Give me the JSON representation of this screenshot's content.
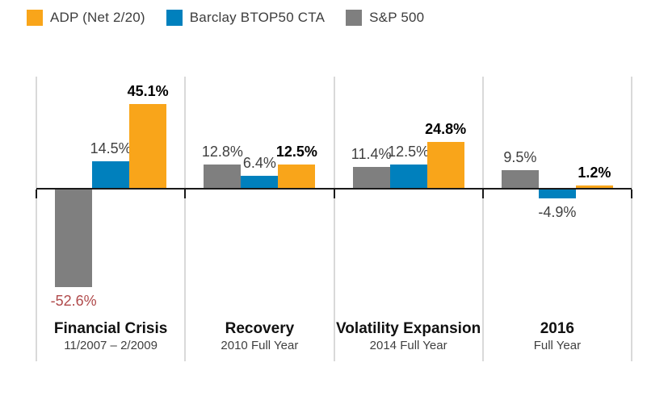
{
  "legend": {
    "items": [
      {
        "label": "ADP (Net 2/20)",
        "color": "#F9A51A"
      },
      {
        "label": "Barclay BTOP50 CTA",
        "color": "#0080BD"
      },
      {
        "label": "S&P 500",
        "color": "#7F7F7F"
      }
    ]
  },
  "chart_data": {
    "type": "bar",
    "title": "",
    "ylabel": "",
    "xlabel": "",
    "ylim": [
      -60,
      50
    ],
    "grid": "off",
    "legend_position": "top-left",
    "value_unit": "%",
    "categories": [
      "Financial Crisis",
      "Recovery",
      "Volatility Expansion",
      "2016"
    ],
    "series": [
      {
        "name": "ADP (Net 2/20)",
        "color": "#F9A51A",
        "values": [
          45.1,
          12.5,
          24.8,
          1.2
        ]
      },
      {
        "name": "Barclay BTOP50 CTA",
        "color": "#0080BD",
        "values": [
          14.5,
          6.4,
          12.5,
          -4.9
        ]
      },
      {
        "name": "S&P 500",
        "color": "#7F7F7F",
        "values": [
          -52.6,
          12.8,
          11.4,
          9.5
        ]
      }
    ],
    "bar_order_within_group": [
      "S&P 500",
      "Barclay BTOP50 CTA",
      "ADP (Net 2/20)"
    ],
    "groups": [
      {
        "title": "Financial Crisis",
        "subtitle": "11/2007 – 2/2009",
        "bars": [
          {
            "series": "S&P 500",
            "value": -52.6,
            "label": "-52.6%",
            "label_color": "#B04A4B"
          },
          {
            "series": "Barclay BTOP50 CTA",
            "value": 14.5,
            "label": "14.5%"
          },
          {
            "series": "ADP (Net 2/20)",
            "value": 45.1,
            "label": "45.1%",
            "bold": true
          }
        ]
      },
      {
        "title": "Recovery",
        "subtitle": "2010 Full Year",
        "bars": [
          {
            "series": "S&P 500",
            "value": 12.8,
            "label": "12.8%"
          },
          {
            "series": "Barclay BTOP50 CTA",
            "value": 6.4,
            "label": "6.4%"
          },
          {
            "series": "ADP (Net 2/20)",
            "value": 12.5,
            "label": "12.5%",
            "bold": true
          }
        ]
      },
      {
        "title": "Volatility Expansion",
        "subtitle": "2014 Full Year",
        "bars": [
          {
            "series": "S&P 500",
            "value": 11.4,
            "label": "11.4%"
          },
          {
            "series": "Barclay BTOP50 CTA",
            "value": 12.5,
            "label": "12.5%"
          },
          {
            "series": "ADP (Net 2/20)",
            "value": 24.8,
            "label": "24.8%",
            "bold": true
          }
        ]
      },
      {
        "title": "2016",
        "subtitle": "Full Year",
        "bars": [
          {
            "series": "S&P 500",
            "value": 9.5,
            "label": "9.5%"
          },
          {
            "series": "Barclay BTOP50 CTA",
            "value": -4.9,
            "label": "-4.9%"
          },
          {
            "series": "ADP (Net 2/20)",
            "value": 1.2,
            "label": "1.2%",
            "bold": true
          }
        ]
      }
    ]
  }
}
